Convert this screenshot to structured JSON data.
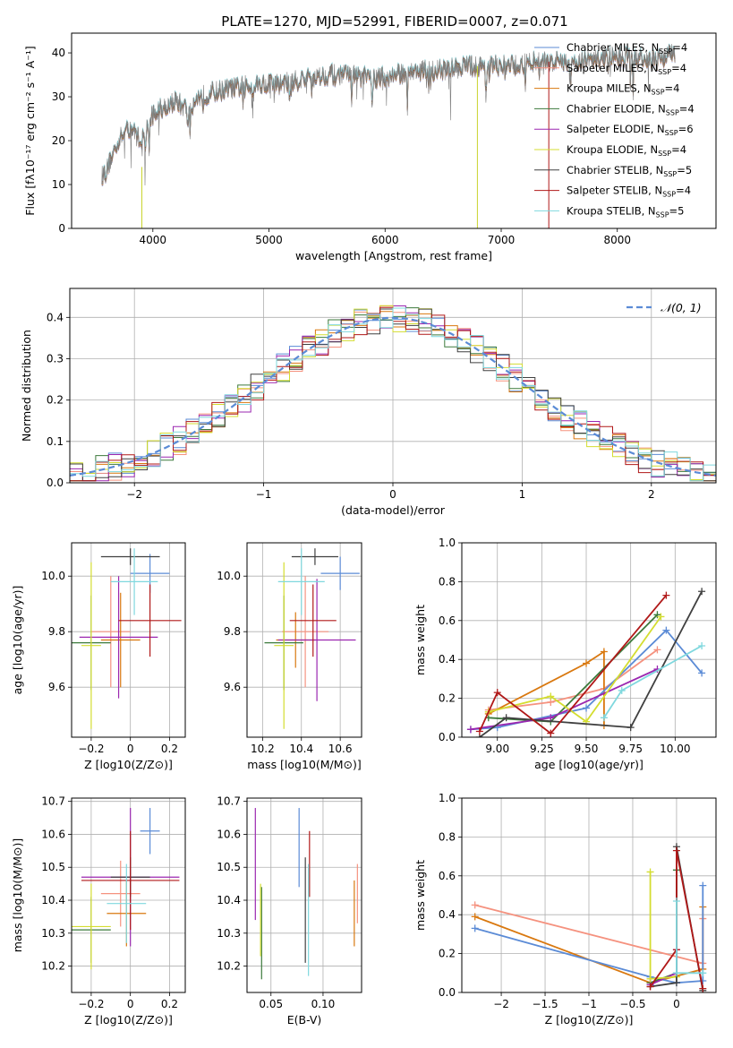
{
  "figure": {
    "title": "PLATE=1270, MJD=52991, FIBERID=0007, z=0.071"
  },
  "chart_data": [
    {
      "id": "spectrum",
      "type": "line",
      "xlabel": "wavelength [Angstrom, rest frame]",
      "ylabel": "Flux [fλ10⁻¹⁷ erg cm⁻² s⁻¹ A⁻¹]",
      "xlim": [
        3300,
        8850
      ],
      "ylim": [
        0,
        44.5
      ],
      "xticks": [
        4000,
        5000,
        6000,
        7000,
        8000
      ],
      "yticks": [
        0,
        10,
        20,
        30,
        40
      ],
      "grid": false,
      "legend_position": "top-right",
      "continuum": [
        [
          3560,
          12
        ],
        [
          3600,
          13
        ],
        [
          3700,
          20
        ],
        [
          3800,
          23
        ],
        [
          3900,
          20
        ],
        [
          3950,
          23
        ],
        [
          4000,
          26
        ],
        [
          4100,
          28
        ],
        [
          4200,
          29
        ],
        [
          4300,
          27
        ],
        [
          4400,
          30
        ],
        [
          4500,
          31
        ],
        [
          4700,
          32
        ],
        [
          4900,
          33
        ],
        [
          5100,
          33
        ],
        [
          5300,
          34
        ],
        [
          5500,
          35
        ],
        [
          5700,
          35
        ],
        [
          5900,
          34
        ],
        [
          6100,
          35
        ],
        [
          6300,
          36
        ],
        [
          6500,
          36
        ],
        [
          6700,
          37
        ],
        [
          6900,
          37
        ],
        [
          7100,
          37
        ],
        [
          7300,
          38
        ],
        [
          7500,
          38
        ],
        [
          7700,
          38
        ],
        [
          7900,
          39
        ],
        [
          8100,
          39
        ],
        [
          8300,
          38
        ],
        [
          8500,
          40
        ]
      ],
      "series": [
        {
          "name": "Chabrier MILES, N_SSP=4",
          "color": "#5b8bd6"
        },
        {
          "name": "Salpeter MILES, N_SSP=4",
          "color": "#f5927f"
        },
        {
          "name": "Kroupa MILES, N_SSP=4",
          "color": "#d9780f"
        },
        {
          "name": "Chabrier ELODIE, N_SSP=4",
          "color": "#3c7a3c"
        },
        {
          "name": "Salpeter ELODIE, N_SSP=6",
          "color": "#9b27b0"
        },
        {
          "name": "Kroupa ELODIE, N_SSP=4",
          "color": "#d4dd30"
        },
        {
          "name": "Chabrier STELIB, N_SSP=5",
          "color": "#404040"
        },
        {
          "name": "Salpeter STELIB, N_SSP=4",
          "color": "#b01818"
        },
        {
          "name": "Kroupa STELIB, N_SSP=5",
          "color": "#7fd8de"
        }
      ],
      "data_color": "#7f7f7f",
      "spikes": [
        {
          "x": 3905,
          "ymin": 0,
          "ymax": 14,
          "color": "#c9d32d"
        },
        {
          "x": 6795,
          "ymin": 0,
          "ymax": 37,
          "color": "#c9d32d"
        },
        {
          "x": 7410,
          "ymin": 0,
          "ymax": 38,
          "color": "#b01818"
        }
      ]
    },
    {
      "id": "residuals",
      "type": "histogram",
      "xlabel": "(data-model)/error",
      "ylabel": "Normed distribution",
      "xlim": [
        -2.5,
        2.5
      ],
      "ylim": [
        0,
        0.47
      ],
      "xticks": [
        -2,
        -1,
        0,
        1,
        2
      ],
      "yticks": [
        0.0,
        0.1,
        0.2,
        0.3,
        0.4
      ],
      "grid": true,
      "reference_label": "𝒩(0, 1)",
      "reference_color": "#5b8bd6",
      "bin_width": 0.1
    },
    {
      "id": "age-vs-Z",
      "type": "errorbar",
      "xlabel": "Z [log10(Z/Z⊙)]",
      "ylabel": "age [log10(age/yr)]",
      "xlim": [
        -0.3,
        0.28
      ],
      "ylim": [
        9.42,
        10.12
      ],
      "xticks": [
        -0.2,
        0.0,
        0.2
      ],
      "yticks": [
        9.6,
        9.8,
        10.0
      ],
      "grid": true,
      "points": [
        {
          "x": -0.1,
          "y": 9.8,
          "xerr": 0.1,
          "yerr": 0.2,
          "color": "#f5927f"
        },
        {
          "x": -0.05,
          "y": 9.77,
          "xerr": 0.1,
          "yerr": 0.17,
          "color": "#d9780f"
        },
        {
          "x": 0.1,
          "y": 10.01,
          "xerr": 0.1,
          "yerr": 0.07,
          "color": "#5b8bd6"
        },
        {
          "x": -0.2,
          "y": 9.76,
          "xerr": 0.1,
          "yerr": 0.17,
          "color": "#3c7a3c"
        },
        {
          "x": -0.06,
          "y": 9.78,
          "xerr": 0.2,
          "yerr": 0.22,
          "color": "#9b27b0"
        },
        {
          "x": -0.2,
          "y": 9.75,
          "xerr": 0.05,
          "yerr": 0.3,
          "color": "#d4dd30"
        },
        {
          "x": 0.0,
          "y": 10.07,
          "xerr": 0.15,
          "yerr": 0.03,
          "color": "#404040"
        },
        {
          "x": 0.1,
          "y": 9.84,
          "xerr": 0.16,
          "yerr": 0.13,
          "color": "#b01818"
        },
        {
          "x": 0.02,
          "y": 9.98,
          "xerr": 0.12,
          "yerr": 0.12,
          "color": "#7fd8de"
        }
      ]
    },
    {
      "id": "age-vs-mass",
      "type": "errorbar",
      "xlabel": "mass [log10(M/M⊙)]",
      "ylabel": "",
      "xlim": [
        10.12,
        10.71
      ],
      "ylim": [
        9.42,
        10.12
      ],
      "xticks": [
        10.2,
        10.4,
        10.6
      ],
      "yticks": [
        9.6,
        9.8,
        10.0
      ],
      "grid": true,
      "points": [
        {
          "x": 10.42,
          "y": 9.8,
          "xerr": 0.12,
          "yerr": 0.2,
          "color": "#f5927f"
        },
        {
          "x": 10.37,
          "y": 9.77,
          "xerr": 0.1,
          "yerr": 0.1,
          "color": "#d9780f"
        },
        {
          "x": 10.6,
          "y": 10.01,
          "xerr": 0.1,
          "yerr": 0.06,
          "color": "#5b8bd6"
        },
        {
          "x": 10.31,
          "y": 9.76,
          "xerr": 0.1,
          "yerr": 0.17,
          "color": "#3c7a3c"
        },
        {
          "x": 10.48,
          "y": 9.77,
          "xerr": 0.2,
          "yerr": 0.22,
          "color": "#9b27b0"
        },
        {
          "x": 10.31,
          "y": 9.75,
          "xerr": 0.05,
          "yerr": 0.3,
          "color": "#d4dd30"
        },
        {
          "x": 10.47,
          "y": 10.07,
          "xerr": 0.12,
          "yerr": 0.03,
          "color": "#404040"
        },
        {
          "x": 10.46,
          "y": 9.84,
          "xerr": 0.12,
          "yerr": 0.13,
          "color": "#b01818"
        },
        {
          "x": 10.4,
          "y": 9.98,
          "xerr": 0.12,
          "yerr": 0.12,
          "color": "#7fd8de"
        }
      ]
    },
    {
      "id": "weight-vs-age",
      "type": "line",
      "xlabel": "age [log10(age/yr)]",
      "ylabel": "mass weight",
      "xlim": [
        8.8,
        10.23
      ],
      "ylim": [
        0,
        1.0
      ],
      "xticks": [
        9.0,
        9.25,
        9.5,
        9.75,
        10.0
      ],
      "xticklabels": [
        "9.00",
        "9.25",
        "9.50",
        "9.75",
        "10.00"
      ],
      "yticks": [
        0.0,
        0.2,
        0.4,
        0.6,
        0.8,
        1.0
      ],
      "grid": true,
      "series": [
        {
          "color": "#f5927f",
          "x": [
            8.95,
            9.3,
            9.6,
            9.9
          ],
          "y": [
            0.14,
            0.18,
            0.25,
            0.45
          ]
        },
        {
          "color": "#d9780f",
          "x": [
            8.95,
            9.5,
            9.6,
            9.6
          ],
          "y": [
            0.12,
            0.38,
            0.44,
            0.06
          ]
        },
        {
          "color": "#5b8bd6",
          "x": [
            8.85,
            9.0,
            9.5,
            9.95,
            10.15
          ],
          "y": [
            0.04,
            0.05,
            0.15,
            0.55,
            0.33
          ]
        },
        {
          "color": "#3c7a3c",
          "x": [
            8.95,
            9.3,
            9.9
          ],
          "y": [
            0.1,
            0.08,
            0.63
          ]
        },
        {
          "color": "#9b27b0",
          "x": [
            8.85,
            9.3,
            9.9
          ],
          "y": [
            0.04,
            0.1,
            0.35
          ]
        },
        {
          "color": "#d4dd30",
          "x": [
            8.95,
            9.3,
            9.5,
            9.92
          ],
          "y": [
            0.13,
            0.21,
            0.08,
            0.62
          ]
        },
        {
          "color": "#404040",
          "x": [
            8.9,
            9.05,
            9.75,
            10.15
          ],
          "y": [
            0.0,
            0.1,
            0.05,
            0.75
          ]
        },
        {
          "color": "#b01818",
          "x": [
            8.9,
            9.0,
            9.3,
            9.95
          ],
          "y": [
            0.03,
            0.23,
            0.02,
            0.73
          ]
        },
        {
          "color": "#7fd8de",
          "x": [
            9.6,
            9.7,
            10.15
          ],
          "y": [
            0.1,
            0.24,
            0.47
          ]
        }
      ]
    },
    {
      "id": "mass-vs-Z",
      "type": "errorbar",
      "xlabel": "Z [log10(Z/Z⊙)]",
      "ylabel": "mass [log10(M/M⊙)]",
      "xlim": [
        -0.3,
        0.28
      ],
      "ylim": [
        10.12,
        10.71
      ],
      "xticks": [
        -0.2,
        0.0,
        0.2
      ],
      "yticks": [
        10.2,
        10.3,
        10.4,
        10.5,
        10.6,
        10.7
      ],
      "grid": true,
      "points": [
        {
          "x": -0.05,
          "y": 10.42,
          "xerr": 0.1,
          "yerr": 0.1,
          "color": "#f5927f"
        },
        {
          "x": -0.02,
          "y": 10.36,
          "xerr": 0.1,
          "yerr": 0.1,
          "color": "#d9780f"
        },
        {
          "x": 0.1,
          "y": 10.61,
          "xerr": 0.05,
          "yerr": 0.07,
          "color": "#5b8bd6"
        },
        {
          "x": -0.2,
          "y": 10.31,
          "xerr": 0.1,
          "yerr": 0.1,
          "color": "#3c7a3c"
        },
        {
          "x": 0.0,
          "y": 10.47,
          "xerr": 0.25,
          "yerr": 0.21,
          "color": "#9b27b0"
        },
        {
          "x": -0.2,
          "y": 10.32,
          "xerr": 0.1,
          "yerr": 0.13,
          "color": "#d4dd30"
        },
        {
          "x": 0.0,
          "y": 10.47,
          "xerr": 0.1,
          "yerr": 0.06,
          "color": "#404040"
        },
        {
          "x": 0.0,
          "y": 10.46,
          "xerr": 0.25,
          "yerr": 0.15,
          "color": "#b01818"
        },
        {
          "x": -0.02,
          "y": 10.39,
          "xerr": 0.1,
          "yerr": 0.12,
          "color": "#7fd8de"
        }
      ]
    },
    {
      "id": "mass-vs-EBV",
      "type": "errorbar",
      "xlabel": "E(B-V)",
      "ylabel": "",
      "xlim": [
        0.027,
        0.137
      ],
      "ylim": [
        10.12,
        10.71
      ],
      "xticks": [
        0.05,
        0.1
      ],
      "xticklabels": [
        "0.05",
        "0.10"
      ],
      "yticks": [
        10.2,
        10.3,
        10.4,
        10.5,
        10.6,
        10.7
      ],
      "grid": true,
      "points": [
        {
          "x": 0.133,
          "y": 10.42,
          "xerr": 0,
          "yerr": 0.09,
          "color": "#f5927f"
        },
        {
          "x": 0.13,
          "y": 10.36,
          "xerr": 0,
          "yerr": 0.1,
          "color": "#d9780f"
        },
        {
          "x": 0.077,
          "y": 10.56,
          "xerr": 0,
          "yerr": 0.12,
          "color": "#5b8bd6"
        },
        {
          "x": 0.041,
          "y": 10.3,
          "xerr": 0,
          "yerr": 0.14,
          "color": "#3c7a3c"
        },
        {
          "x": 0.035,
          "y": 10.51,
          "xerr": 0,
          "yerr": 0.17,
          "color": "#9b27b0"
        },
        {
          "x": 0.04,
          "y": 10.34,
          "xerr": 0,
          "yerr": 0.11,
          "color": "#d4dd30"
        },
        {
          "x": 0.083,
          "y": 10.37,
          "xerr": 0,
          "yerr": 0.16,
          "color": "#404040"
        },
        {
          "x": 0.087,
          "y": 10.51,
          "xerr": 0,
          "yerr": 0.1,
          "color": "#b01818"
        },
        {
          "x": 0.086,
          "y": 10.34,
          "xerr": 0,
          "yerr": 0.17,
          "color": "#7fd8de"
        }
      ]
    },
    {
      "id": "weight-vs-Z",
      "type": "line",
      "xlabel": "Z [log10(Z/Z⊙)]",
      "ylabel": "mass weight",
      "xlim": [
        -2.45,
        0.45
      ],
      "ylim": [
        0,
        1.0
      ],
      "xticks": [
        -2.0,
        -1.5,
        -1.0,
        -0.5,
        0.0
      ],
      "yticks": [
        0.0,
        0.2,
        0.4,
        0.6,
        0.8,
        1.0
      ],
      "grid": true,
      "series": [
        {
          "color": "#f5927f",
          "x": [
            -2.3,
            0.3,
            0.3
          ],
          "y": [
            0.45,
            0.15,
            0.38
          ]
        },
        {
          "color": "#d9780f",
          "x": [
            -2.3,
            -0.3,
            0.3,
            0.3
          ],
          "y": [
            0.39,
            0.05,
            0.12,
            0.44
          ]
        },
        {
          "color": "#5b8bd6",
          "x": [
            -2.3,
            -0.3,
            0.0,
            0.3,
            0.3
          ],
          "y": [
            0.33,
            0.08,
            0.05,
            0.06,
            0.55
          ]
        },
        {
          "color": "#3c7a3c",
          "x": [
            -0.3,
            0.0,
            0.0
          ],
          "y": [
            0.05,
            0.1,
            0.63
          ]
        },
        {
          "color": "#9b27b0",
          "x": [
            -0.3,
            0.0,
            0.0
          ],
          "y": [
            0.04,
            0.1,
            0.22
          ]
        },
        {
          "color": "#d4dd30",
          "x": [
            -0.3,
            -0.3,
            0.0
          ],
          "y": [
            0.62,
            0.07,
            0.08
          ]
        },
        {
          "color": "#404040",
          "x": [
            -0.3,
            0.0,
            0.0,
            0.3
          ],
          "y": [
            0.03,
            0.05,
            0.75,
            0.01
          ]
        },
        {
          "color": "#b01818",
          "x": [
            -0.3,
            0.0,
            0.0,
            0.3
          ],
          "y": [
            0.03,
            0.22,
            0.73,
            0.02
          ]
        },
        {
          "color": "#7fd8de",
          "x": [
            0.0,
            0.0,
            0.3
          ],
          "y": [
            0.47,
            0.1,
            0.1
          ]
        }
      ]
    }
  ]
}
